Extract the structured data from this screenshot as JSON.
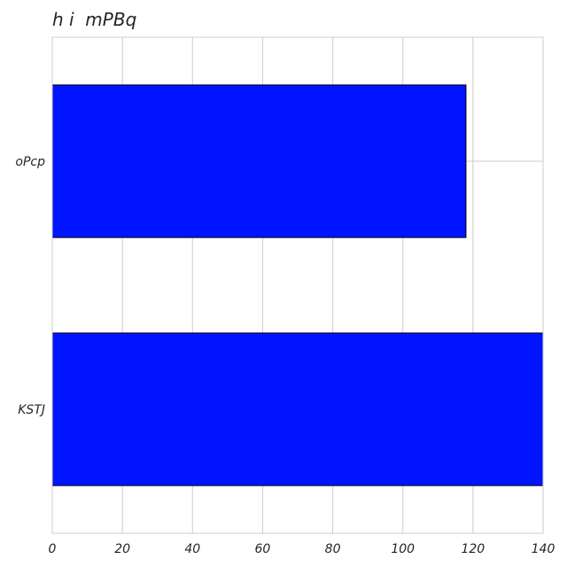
{
  "chart_data": {
    "type": "bar",
    "orientation": "horizontal",
    "title": "h i  mPBq",
    "xlabel": "",
    "ylabel": "",
    "categories": [
      "KSTJ",
      "oPcp"
    ],
    "values": [
      140,
      118
    ],
    "xlim": [
      0,
      140
    ],
    "x_ticks": [
      0,
      20,
      40,
      60,
      80,
      100,
      120,
      140
    ],
    "grid": true,
    "legend": "none",
    "bar_color": "#0014ff",
    "bar_edge_color": "#000000"
  }
}
